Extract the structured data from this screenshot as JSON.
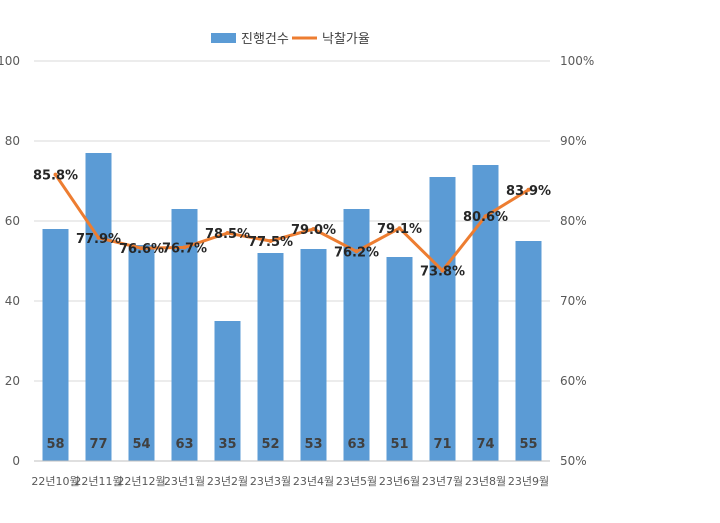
{
  "chart_data": {
    "type": "bar",
    "categories": [
      "22년10월",
      "22년11월",
      "22년12월",
      "23년1월",
      "23년2월",
      "23년3월",
      "23년4월",
      "23년5월",
      "23년6월",
      "23년7월",
      "23년8월",
      "23년9월"
    ],
    "series": [
      {
        "name": "진행건수",
        "type": "bar",
        "axis": "left",
        "color": "#5B9BD5",
        "values": [
          58,
          77,
          54,
          63,
          35,
          52,
          53,
          63,
          51,
          71,
          74,
          55
        ],
        "labels": [
          "58",
          "77",
          "54",
          "63",
          "35",
          "52",
          "53",
          "63",
          "51",
          "71",
          "74",
          "55"
        ]
      },
      {
        "name": "낙찰가율",
        "type": "line",
        "axis": "right",
        "color": "#ED7D31",
        "values": [
          85.8,
          77.9,
          76.6,
          76.7,
          78.5,
          77.5,
          79.0,
          76.2,
          79.1,
          73.8,
          80.6,
          83.9
        ],
        "labels": [
          "85.8%",
          "77.9%",
          "76.6%",
          "76.7%",
          "78.5%",
          "77.5%",
          "79.0%",
          "76.2%",
          "79.1%",
          "73.8%",
          "80.6%",
          "83.9%"
        ]
      }
    ],
    "y_left": {
      "range": [
        0,
        100
      ],
      "ticks": [
        "0",
        "20",
        "40",
        "60",
        "80",
        "100"
      ]
    },
    "y_right": {
      "range": [
        50,
        100
      ],
      "ticks": [
        "50%",
        "60%",
        "70%",
        "80%",
        "90%",
        "100%"
      ]
    },
    "grid": true,
    "legend": "top-center"
  }
}
